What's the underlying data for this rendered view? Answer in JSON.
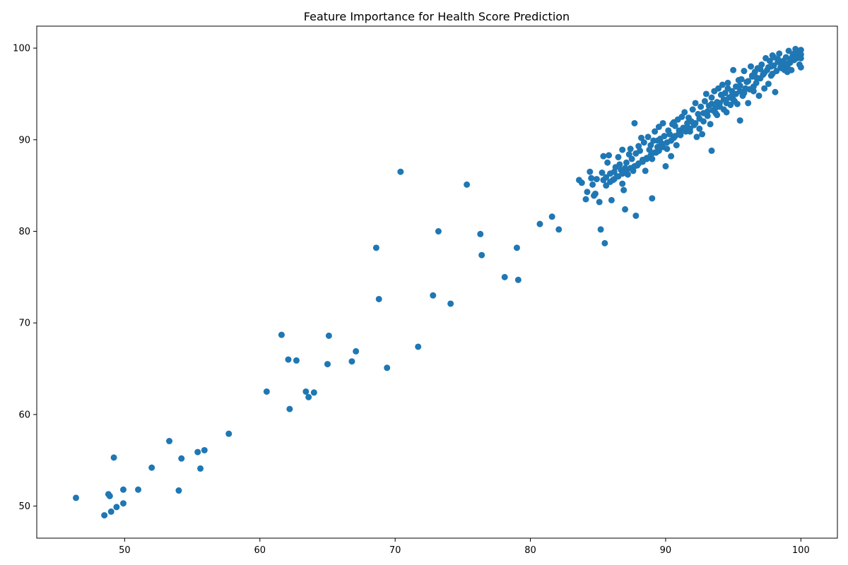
{
  "chart_data": {
    "type": "scatter",
    "title": "Feature Importance for Health Score Prediction",
    "xlabel": "",
    "ylabel": "",
    "xlim": [
      43.5,
      102.7
    ],
    "ylim": [
      46.5,
      102.4
    ],
    "xticks": [
      50,
      60,
      70,
      80,
      90,
      100
    ],
    "yticks": [
      50,
      60,
      70,
      80,
      90,
      100
    ],
    "grid": false,
    "marker_color": "#1f77b4",
    "series": [
      {
        "points": [
          [
            46.4,
            50.9
          ],
          [
            48.5,
            49.0
          ],
          [
            48.8,
            51.3
          ],
          [
            48.9,
            51.1
          ],
          [
            49.0,
            49.4
          ],
          [
            49.2,
            55.3
          ],
          [
            49.4,
            49.9
          ],
          [
            49.9,
            51.8
          ],
          [
            49.9,
            50.3
          ],
          [
            51.0,
            51.8
          ],
          [
            52.0,
            54.2
          ],
          [
            53.3,
            57.1
          ],
          [
            54.0,
            51.7
          ],
          [
            54.2,
            55.2
          ],
          [
            55.4,
            55.9
          ],
          [
            55.6,
            54.1
          ],
          [
            55.9,
            56.1
          ],
          [
            57.7,
            57.9
          ],
          [
            60.5,
            62.5
          ],
          [
            61.6,
            68.7
          ],
          [
            62.1,
            66.0
          ],
          [
            62.2,
            60.6
          ],
          [
            62.7,
            65.9
          ],
          [
            63.4,
            62.5
          ],
          [
            63.6,
            61.9
          ],
          [
            64.0,
            62.4
          ],
          [
            65.0,
            65.5
          ],
          [
            65.1,
            68.6
          ],
          [
            66.8,
            65.8
          ],
          [
            67.1,
            66.9
          ],
          [
            68.6,
            78.2
          ],
          [
            68.8,
            72.6
          ],
          [
            69.4,
            65.1
          ],
          [
            70.4,
            86.5
          ],
          [
            71.7,
            67.4
          ],
          [
            72.8,
            73.0
          ],
          [
            73.2,
            80.0
          ],
          [
            74.1,
            72.1
          ],
          [
            75.3,
            85.1
          ],
          [
            76.3,
            79.7
          ],
          [
            76.4,
            77.4
          ],
          [
            78.1,
            75.0
          ],
          [
            79.0,
            78.2
          ],
          [
            79.1,
            74.7
          ],
          [
            80.7,
            80.8
          ],
          [
            81.6,
            81.6
          ],
          [
            82.1,
            80.2
          ],
          [
            85.2,
            80.2
          ],
          [
            85.5,
            78.7
          ],
          [
            87.0,
            82.4
          ],
          [
            87.8,
            81.7
          ],
          [
            89.0,
            83.6
          ],
          [
            93.4,
            88.8
          ],
          [
            95.5,
            92.1
          ],
          [
            83.6,
            85.6
          ],
          [
            83.8,
            85.3
          ],
          [
            84.1,
            83.5
          ],
          [
            84.2,
            84.3
          ],
          [
            84.4,
            86.5
          ],
          [
            84.5,
            85.8
          ],
          [
            84.6,
            85.1
          ],
          [
            84.7,
            83.9
          ],
          [
            84.8,
            84.1
          ],
          [
            84.9,
            85.7
          ],
          [
            85.1,
            83.2
          ],
          [
            85.3,
            86.4
          ],
          [
            85.4,
            88.2
          ],
          [
            85.4,
            85.6
          ],
          [
            85.6,
            85.0
          ],
          [
            85.7,
            87.5
          ],
          [
            85.8,
            88.3
          ],
          [
            85.9,
            86.3
          ],
          [
            86.0,
            83.4
          ],
          [
            86.1,
            85.6
          ],
          [
            86.2,
            86.5
          ],
          [
            86.3,
            87.0
          ],
          [
            86.4,
            86.0
          ],
          [
            86.5,
            88.1
          ],
          [
            86.6,
            87.3
          ],
          [
            86.7,
            86.7
          ],
          [
            86.8,
            85.2
          ],
          [
            86.8,
            88.9
          ],
          [
            86.9,
            84.5
          ],
          [
            87.0,
            86.9
          ],
          [
            87.1,
            87.5
          ],
          [
            87.2,
            86.2
          ],
          [
            87.3,
            88.4
          ],
          [
            87.4,
            89.0
          ],
          [
            87.5,
            87.9
          ],
          [
            87.6,
            86.6
          ],
          [
            87.7,
            91.8
          ],
          [
            87.8,
            88.5
          ],
          [
            87.9,
            87.2
          ],
          [
            88.0,
            89.3
          ],
          [
            88.1,
            88.8
          ],
          [
            88.2,
            90.2
          ],
          [
            88.3,
            87.6
          ],
          [
            88.4,
            89.7
          ],
          [
            88.5,
            86.6
          ],
          [
            88.6,
            88.0
          ],
          [
            88.7,
            90.3
          ],
          [
            88.8,
            88.9
          ],
          [
            88.9,
            89.4
          ],
          [
            89.0,
            87.9
          ],
          [
            89.1,
            89.9
          ],
          [
            89.2,
            90.9
          ],
          [
            89.3,
            88.6
          ],
          [
            89.4,
            89.2
          ],
          [
            89.5,
            91.4
          ],
          [
            89.6,
            90.1
          ],
          [
            89.7,
            89.6
          ],
          [
            89.8,
            91.8
          ],
          [
            89.9,
            90.4
          ],
          [
            90.0,
            87.1
          ],
          [
            90.1,
            89.0
          ],
          [
            90.2,
            91.0
          ],
          [
            90.3,
            90.6
          ],
          [
            90.4,
            88.2
          ],
          [
            90.5,
            91.7
          ],
          [
            90.6,
            90.2
          ],
          [
            90.7,
            91.5
          ],
          [
            90.8,
            89.4
          ],
          [
            90.9,
            92.2
          ],
          [
            91.0,
            91.0
          ],
          [
            91.1,
            90.5
          ],
          [
            91.2,
            92.5
          ],
          [
            91.3,
            91.3
          ],
          [
            91.4,
            93.0
          ],
          [
            91.5,
            90.9
          ],
          [
            91.6,
            91.8
          ],
          [
            91.7,
            92.4
          ],
          [
            91.8,
            91.2
          ],
          [
            92.0,
            93.3
          ],
          [
            92.1,
            91.6
          ],
          [
            92.2,
            94.0
          ],
          [
            92.3,
            90.3
          ],
          [
            92.4,
            92.8
          ],
          [
            92.5,
            91.2
          ],
          [
            92.6,
            93.6
          ],
          [
            92.7,
            90.6
          ],
          [
            92.8,
            92.0
          ],
          [
            92.9,
            94.2
          ],
          [
            93.0,
            95.0
          ],
          [
            93.1,
            92.6
          ],
          [
            93.2,
            93.7
          ],
          [
            93.3,
            91.7
          ],
          [
            93.4,
            94.6
          ],
          [
            93.5,
            93.2
          ],
          [
            93.6,
            95.3
          ],
          [
            93.7,
            92.9
          ],
          [
            93.8,
            94.1
          ],
          [
            93.9,
            95.6
          ],
          [
            94.0,
            93.6
          ],
          [
            94.1,
            94.9
          ],
          [
            94.2,
            96.0
          ],
          [
            94.3,
            93.3
          ],
          [
            94.4,
            95.1
          ],
          [
            94.5,
            94.0
          ],
          [
            94.6,
            96.2
          ],
          [
            94.7,
            94.6
          ],
          [
            94.8,
            93.8
          ],
          [
            94.9,
            95.3
          ],
          [
            95.0,
            97.6
          ],
          [
            95.1,
            94.2
          ],
          [
            95.2,
            95.8
          ],
          [
            95.3,
            93.9
          ],
          [
            95.4,
            96.5
          ],
          [
            95.5,
            95.3
          ],
          [
            95.6,
            96.6
          ],
          [
            95.7,
            94.8
          ],
          [
            95.8,
            97.5
          ],
          [
            95.9,
            95.6
          ],
          [
            96.0,
            96.3
          ],
          [
            96.1,
            94.0
          ],
          [
            96.2,
            95.5
          ],
          [
            96.3,
            98.0
          ],
          [
            96.4,
            96.9
          ],
          [
            96.5,
            95.8
          ],
          [
            96.6,
            97.4
          ],
          [
            96.7,
            96.2
          ],
          [
            96.8,
            97.8
          ],
          [
            96.9,
            94.8
          ],
          [
            97.0,
            96.7
          ],
          [
            97.1,
            98.2
          ],
          [
            97.2,
            97.1
          ],
          [
            97.3,
            95.6
          ],
          [
            97.4,
            98.9
          ],
          [
            97.5,
            97.6
          ],
          [
            97.6,
            96.1
          ],
          [
            97.7,
            98.6
          ],
          [
            97.8,
            97.0
          ],
          [
            97.9,
            99.2
          ],
          [
            98.0,
            98.1
          ],
          [
            98.1,
            95.2
          ],
          [
            98.2,
            97.5
          ],
          [
            98.3,
            98.8
          ],
          [
            98.4,
            99.4
          ],
          [
            98.5,
            97.9
          ],
          [
            98.6,
            98.3
          ],
          [
            98.7,
            98.6
          ],
          [
            98.8,
            97.6
          ],
          [
            98.9,
            99.0
          ],
          [
            99.0,
            98.0
          ],
          [
            99.1,
            99.7
          ],
          [
            99.2,
            98.4
          ],
          [
            99.3,
            97.6
          ],
          [
            99.4,
            99.2
          ],
          [
            99.5,
            98.7
          ],
          [
            99.6,
            99.9
          ],
          [
            99.7,
            98.9
          ],
          [
            99.8,
            99.5
          ],
          [
            99.9,
            98.2
          ],
          [
            100.0,
            99.8
          ],
          [
            100.0,
            98.9
          ],
          [
            100.0,
            99.3
          ],
          [
            100.0,
            97.9
          ],
          [
            99.8,
            99.1
          ],
          [
            99.5,
            99.4
          ],
          [
            99.2,
            98.8
          ],
          [
            98.9,
            98.3
          ],
          [
            98.6,
            97.8
          ],
          [
            98.3,
            98.5
          ],
          [
            97.9,
            97.2
          ],
          [
            97.6,
            97.9
          ],
          [
            97.3,
            97.3
          ],
          [
            97.0,
            97.7
          ],
          [
            96.7,
            96.8
          ],
          [
            96.4,
            97.0
          ],
          [
            96.1,
            96.4
          ],
          [
            95.8,
            95.1
          ],
          [
            95.5,
            95.9
          ],
          [
            95.2,
            95.0
          ],
          [
            94.9,
            94.8
          ],
          [
            94.6,
            95.6
          ],
          [
            94.3,
            94.4
          ],
          [
            94.0,
            94.0
          ],
          [
            93.7,
            93.5
          ],
          [
            93.4,
            93.9
          ],
          [
            93.1,
            93.1
          ],
          [
            92.8,
            92.9
          ],
          [
            92.5,
            92.3
          ],
          [
            92.2,
            91.8
          ],
          [
            91.9,
            92.0
          ],
          [
            91.6,
            91.4
          ],
          [
            91.3,
            91.0
          ],
          [
            91.0,
            90.7
          ],
          [
            90.7,
            90.4
          ],
          [
            90.4,
            89.9
          ],
          [
            90.1,
            89.7
          ],
          [
            89.8,
            89.2
          ],
          [
            89.5,
            88.8
          ],
          [
            89.2,
            88.6
          ],
          [
            88.9,
            88.3
          ],
          [
            88.6,
            87.9
          ],
          [
            88.3,
            87.8
          ],
          [
            88.0,
            87.4
          ],
          [
            87.7,
            87.1
          ],
          [
            87.4,
            86.9
          ],
          [
            87.1,
            86.5
          ],
          [
            86.8,
            86.3
          ],
          [
            86.5,
            86.0
          ],
          [
            86.2,
            85.7
          ],
          [
            85.9,
            85.4
          ],
          [
            85.6,
            85.9
          ],
          [
            94.5,
            93.0
          ],
          [
            95.0,
            94.4
          ],
          [
            93.8,
            92.7
          ],
          [
            96.5,
            95.3
          ],
          [
            97.8,
            98.0
          ],
          [
            99.0,
            97.4
          ],
          [
            98.0,
            99.0
          ],
          [
            91.8,
            90.9
          ],
          [
            90.6,
            91.9
          ],
          [
            89.4,
            89.9
          ]
        ]
      }
    ]
  }
}
